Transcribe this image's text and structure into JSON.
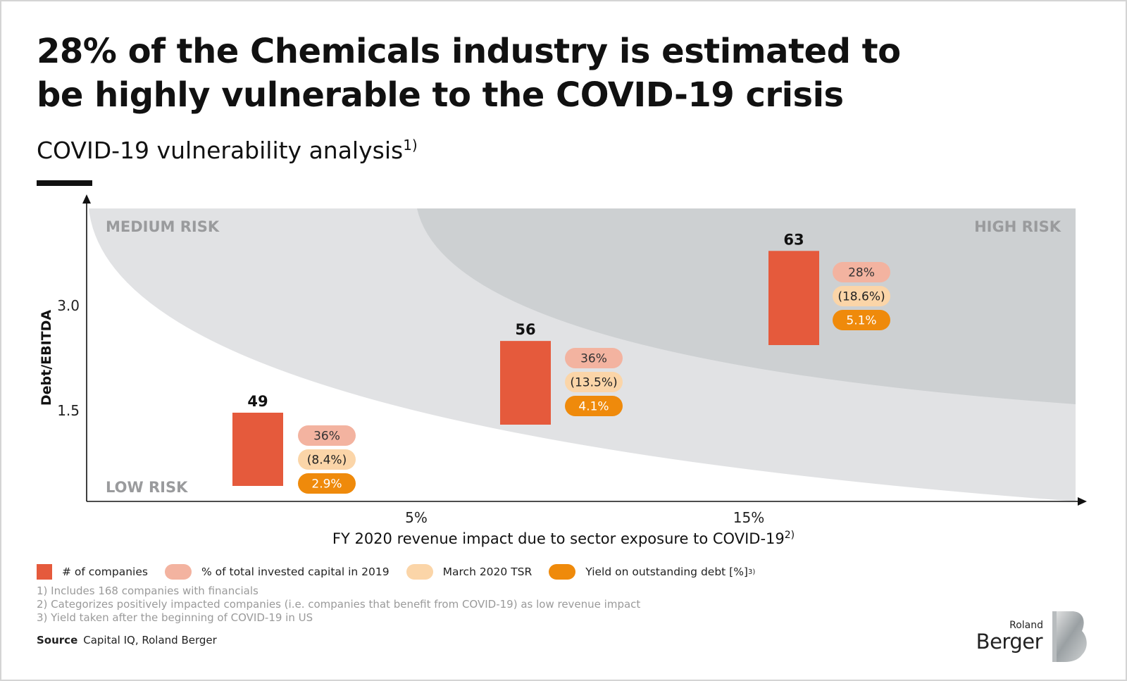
{
  "title": "28% of the Chemicals industry is estimated to be highly vulnerable to the COVID-19 crisis",
  "subtitle": "COVID-19 vulnerability analysis",
  "subtitle_sup": "1)",
  "colors": {
    "bar": "#e55a3c",
    "pct_capital": "#f3b3a0",
    "tsr": "#fbd5a8",
    "yield": "#ef8a0b",
    "region_light": "#e1e2e4",
    "region_dark": "#cdd0d2"
  },
  "regions": {
    "medium": "MEDIUM RISK",
    "high": "HIGH RISK",
    "low": "LOW RISK"
  },
  "legend": [
    {
      "label": "# of companies",
      "shape": "rect",
      "color": "#e55a3c"
    },
    {
      "label": "% of total invested capital in 2019",
      "shape": "pill",
      "color": "#f3b3a0"
    },
    {
      "label": "March 2020 TSR",
      "shape": "pill",
      "color": "#fbd5a8"
    },
    {
      "label": "Yield on outstanding debt [%]",
      "shape": "pill",
      "color": "#ef8a0b",
      "sup": "3)"
    }
  ],
  "notes": [
    "1) Includes 168 companies with financials",
    "2) Categorizes positively impacted companies (i.e. companies that benefit from COVID-19) as low revenue impact",
    "3) Yield taken after the beginning of COVID-19 in US"
  ],
  "source": {
    "label": "Source",
    "text": "Capital IQ, Roland Berger"
  },
  "logo": {
    "line1": "Roland",
    "line2": "Berger"
  },
  "chart_data": {
    "type": "bar",
    "xlabel": "FY 2020 revenue impact due to sector exposure to COVID-19",
    "xlabel_sup": "2)",
    "ylabel": "Debt/EBITDA",
    "x_ticks": [
      "5%",
      "15%"
    ],
    "y_ticks": [
      "3.0",
      "1.5"
    ],
    "grid": false,
    "categories": [
      "Low risk",
      "Medium risk",
      "High risk"
    ],
    "series": [
      {
        "name": "# of companies",
        "values": [
          49,
          56,
          63
        ]
      },
      {
        "name": "% of total invested capital in 2019",
        "values": [
          "36%",
          "36%",
          "28%"
        ]
      },
      {
        "name": "March 2020 TSR",
        "values": [
          "(8.4%)",
          "(13.5%)",
          "(18.6%)"
        ]
      },
      {
        "name": "Yield on outstanding debt [%]",
        "values": [
          "2.9%",
          "4.1%",
          "5.1%"
        ]
      }
    ]
  }
}
